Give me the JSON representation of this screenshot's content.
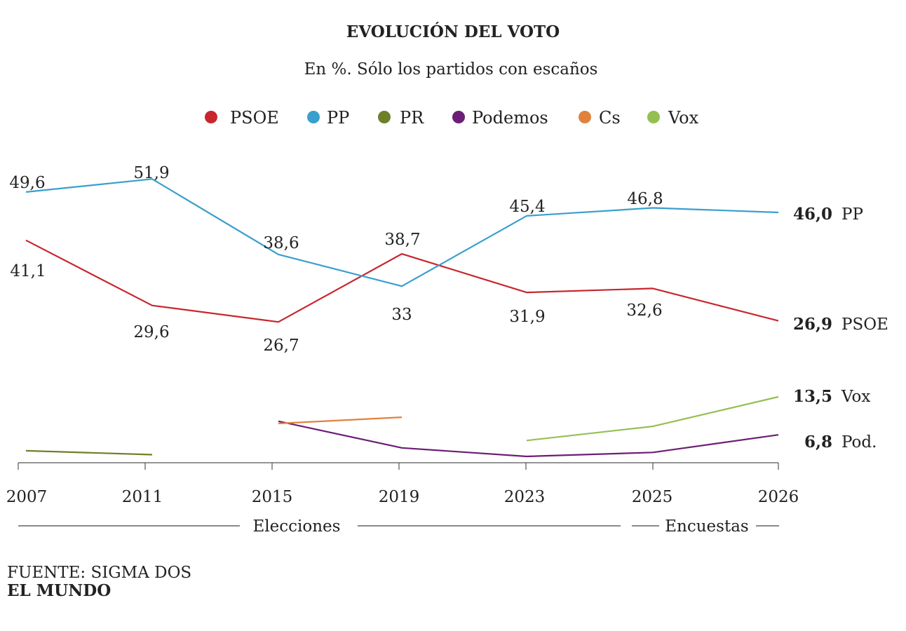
{
  "chart_data": {
    "type": "line",
    "title": "EVOLUCIÓN DEL VOTO",
    "subtitle": "En %. Sólo los partidos con escaños",
    "x": [
      "2007",
      "2011",
      "2015",
      "2019",
      "2023",
      "2025",
      "2026"
    ],
    "periods": [
      {
        "label": "Elecciones",
        "from": 0,
        "to": 4
      },
      {
        "label": "Encuestas",
        "from": 4,
        "to": 6
      }
    ],
    "legend_position": "top-center",
    "series": [
      {
        "key": "psoe",
        "name": "PSOE",
        "color": "#c8262f",
        "values": [
          41.1,
          29.6,
          26.7,
          38.7,
          31.9,
          32.6,
          26.9
        ],
        "labels": [
          "41,1",
          "29,6",
          "26,7",
          "38,7",
          "31,9",
          "32,6",
          null
        ],
        "end_value": "26,9",
        "end_name": "PSOE"
      },
      {
        "key": "pp",
        "name": "PP",
        "color": "#3a9fcd",
        "values": [
          49.6,
          51.9,
          38.6,
          33.0,
          45.4,
          46.8,
          46.0
        ],
        "labels": [
          "49,6",
          "51,9",
          "38,6",
          "33",
          "45,4",
          "46,8",
          null
        ],
        "end_value": "46,0",
        "end_name": "PP"
      },
      {
        "key": "pr",
        "name": "PR",
        "color": "#6e7f2a",
        "values": [
          4.0,
          3.3,
          null,
          null,
          null,
          null,
          null
        ]
      },
      {
        "key": "podemos",
        "name": "Podemos",
        "color": "#6b1e74",
        "values": [
          null,
          null,
          9.2,
          4.5,
          3.0,
          3.7,
          6.8
        ],
        "end_value": "6,8",
        "end_name": "Pod."
      },
      {
        "key": "cs",
        "name": "Cs",
        "color": "#e0823d",
        "values": [
          null,
          null,
          8.8,
          9.9,
          null,
          null,
          null
        ]
      },
      {
        "key": "vox",
        "name": "Vox",
        "color": "#95bf52",
        "values": [
          null,
          null,
          null,
          null,
          5.8,
          8.3,
          13.5
        ],
        "end_value": "13,5",
        "end_name": "Vox"
      }
    ]
  },
  "footer": {
    "source": "FUENTE: SIGMA DOS",
    "brand": "EL MUNDO"
  }
}
